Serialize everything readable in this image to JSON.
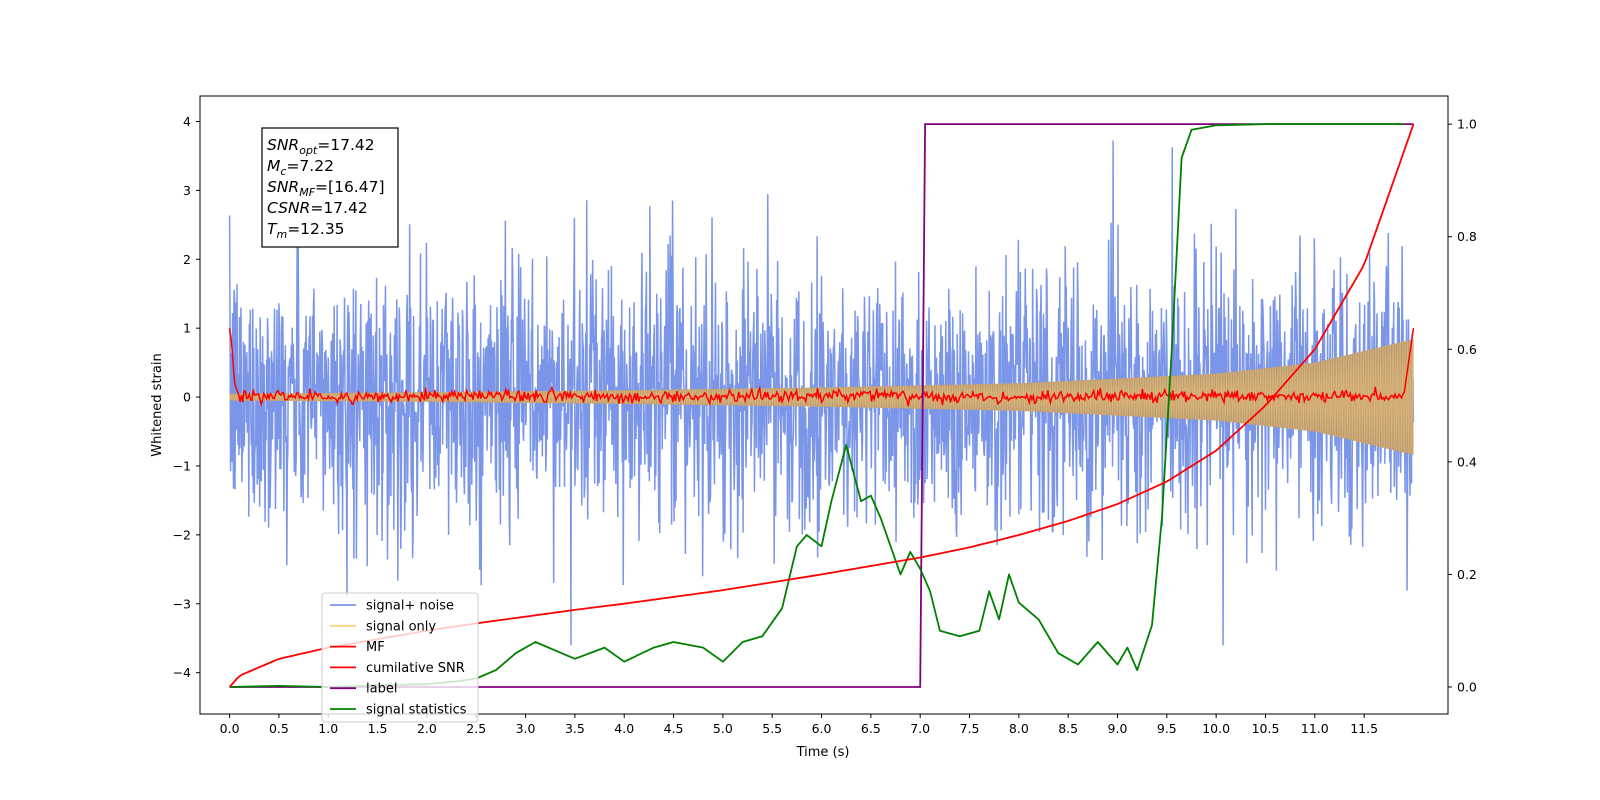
{
  "chart_data": {
    "type": "line",
    "xlabel": "Time (s)",
    "ylabel": "Whitened strain",
    "x_ticks": [
      "0.0",
      "0.5",
      "1.0",
      "1.5",
      "2.0",
      "2.5",
      "3.0",
      "3.5",
      "4.0",
      "4.5",
      "5.0",
      "5.5",
      "6.0",
      "6.5",
      "7.0",
      "7.5",
      "8.0",
      "8.5",
      "9.0",
      "9.5",
      "10.0",
      "10.5",
      "11.0",
      "11.5"
    ],
    "y_left_ticks": [
      "4",
      "3",
      "2",
      "1",
      "0",
      "−1",
      "−2",
      "−3",
      "−4"
    ],
    "y_right_ticks": [
      "1.0",
      "0.8",
      "0.6",
      "0.4",
      "0.2",
      "0.0"
    ],
    "xlim": [
      -0.3,
      12.35
    ],
    "ylim_left": [
      -4.6,
      4.37
    ],
    "ylim_right": [
      -0.048,
      1.05
    ],
    "grid": false,
    "legend_position": "lower-left",
    "legend": [
      "signal+ noise",
      "signal only",
      "MF",
      "cumilative SNR",
      "label",
      "signal statistics"
    ],
    "annotation": {
      "lines": [
        {
          "sym": "SNR",
          "sub": "opt",
          "val": "=17.42"
        },
        {
          "sym": "M",
          "sub": "c",
          "val": "=7.22"
        },
        {
          "sym": "SNR",
          "sub": "MF",
          "val": "=[16.47]"
        },
        {
          "sym": "CSNR",
          "sub": "",
          "val": "=17.42"
        },
        {
          "sym": "T",
          "sub": "m",
          "val": "=12.35"
        }
      ]
    },
    "series": [
      {
        "name": "signal+ noise",
        "axis": "left",
        "color": "#7b96e8",
        "description_values": {
          "x_range": [
            0,
            12.0
          ],
          "amplitude_range": [
            -3.6,
            3.95
          ]
        }
      },
      {
        "name": "signal only",
        "axis": "left",
        "color": "#ffd27f",
        "envelope": {
          "x": [
            0,
            2,
            4,
            6,
            8,
            10,
            11,
            12
          ],
          "amplitude": [
            0.05,
            0.07,
            0.1,
            0.14,
            0.2,
            0.34,
            0.5,
            0.84
          ]
        }
      },
      {
        "name": "MF",
        "axis": "left",
        "color": "#ff0000",
        "x": [
          0.0,
          0.02,
          0.05,
          0.1,
          0.5,
          1.0,
          2.0,
          4.0,
          6.0,
          8.0,
          10.0,
          11.9,
          11.95,
          12.0
        ],
        "y": [
          1.0,
          0.8,
          0.2,
          0.0,
          0.02,
          -0.02,
          0.03,
          0.0,
          0.02,
          0.0,
          0.02,
          0.0,
          0.5,
          1.0
        ]
      },
      {
        "name": "cumilative SNR",
        "axis": "right",
        "color": "#ff0000",
        "x": [
          0.0,
          0.1,
          0.5,
          1.0,
          1.5,
          2.0,
          2.5,
          3.0,
          3.5,
          4.0,
          4.5,
          5.0,
          5.5,
          6.0,
          6.5,
          7.0,
          7.5,
          8.0,
          8.5,
          9.0,
          9.5,
          10.0,
          10.5,
          11.0,
          11.5,
          12.0
        ],
        "y": [
          0.0,
          0.02,
          0.05,
          0.07,
          0.085,
          0.1,
          0.113,
          0.125,
          0.137,
          0.148,
          0.16,
          0.172,
          0.186,
          0.2,
          0.215,
          0.23,
          0.248,
          0.27,
          0.295,
          0.325,
          0.365,
          0.42,
          0.5,
          0.6,
          0.75,
          1.0
        ]
      },
      {
        "name": "label",
        "axis": "right",
        "color": "#800080",
        "x": [
          0.0,
          7.0,
          7.05,
          12.0
        ],
        "y": [
          0.0,
          0.0,
          1.0,
          1.0
        ]
      },
      {
        "name": "signal statistics",
        "axis": "right",
        "color": "#008000",
        "x": [
          0.0,
          0.5,
          1.0,
          1.5,
          2.0,
          2.3,
          2.5,
          2.7,
          2.9,
          3.1,
          3.3,
          3.5,
          3.8,
          4.0,
          4.3,
          4.5,
          4.8,
          5.0,
          5.2,
          5.4,
          5.6,
          5.75,
          5.85,
          6.0,
          6.1,
          6.25,
          6.4,
          6.5,
          6.6,
          6.7,
          6.8,
          6.9,
          7.0,
          7.1,
          7.2,
          7.4,
          7.6,
          7.7,
          7.8,
          7.9,
          8.0,
          8.2,
          8.4,
          8.6,
          8.8,
          9.0,
          9.1,
          9.2,
          9.35,
          9.45,
          9.55,
          9.65,
          9.75,
          10.0,
          10.5,
          11.0,
          11.9
        ],
        "y": [
          0.0,
          0.002,
          0.0,
          0.003,
          0.005,
          0.01,
          0.015,
          0.03,
          0.06,
          0.08,
          0.065,
          0.05,
          0.07,
          0.045,
          0.07,
          0.08,
          0.07,
          0.045,
          0.08,
          0.09,
          0.14,
          0.25,
          0.27,
          0.25,
          0.33,
          0.43,
          0.33,
          0.34,
          0.3,
          0.25,
          0.2,
          0.24,
          0.21,
          0.17,
          0.1,
          0.09,
          0.1,
          0.17,
          0.12,
          0.2,
          0.15,
          0.12,
          0.06,
          0.04,
          0.08,
          0.04,
          0.07,
          0.03,
          0.11,
          0.3,
          0.6,
          0.94,
          0.99,
          0.998,
          1.0,
          1.0,
          1.0
        ]
      }
    ]
  }
}
